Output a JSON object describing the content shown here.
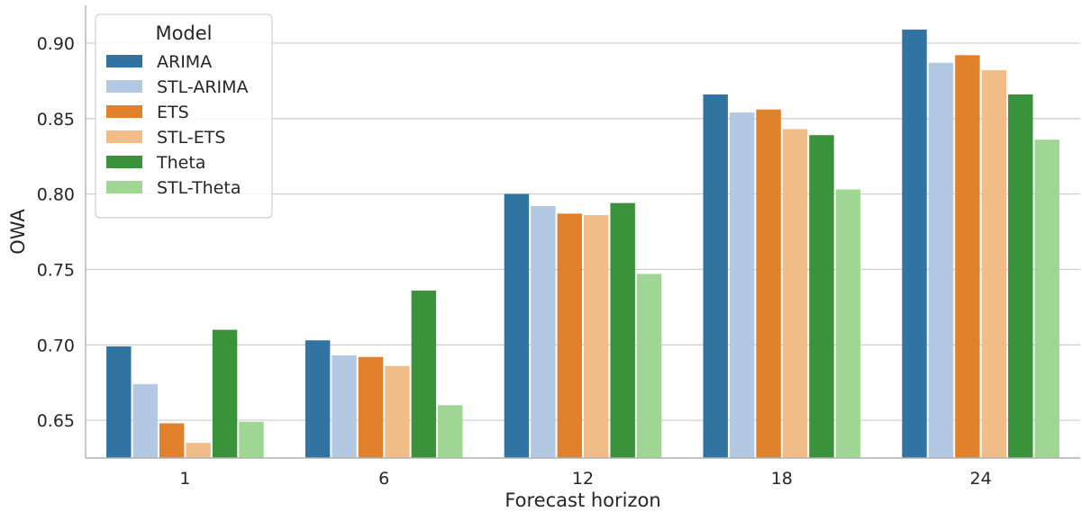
{
  "chart_data": {
    "type": "bar",
    "xlabel": "Forecast horizon",
    "ylabel": "OWA",
    "categories": [
      "1",
      "6",
      "12",
      "18",
      "24"
    ],
    "ylim": [
      0.625,
      0.925
    ],
    "yticks": [
      0.65,
      0.7,
      0.75,
      0.8,
      0.85,
      0.9
    ],
    "ytick_labels": [
      "0.65",
      "0.70",
      "0.75",
      "0.80",
      "0.85",
      "0.90"
    ],
    "grid": "horizontal",
    "legend": {
      "title": "Model",
      "placement": "top-left"
    },
    "series": [
      {
        "name": "ARIMA",
        "color": "#3274a1",
        "values": [
          0.699,
          0.703,
          0.8,
          0.866,
          0.909
        ]
      },
      {
        "name": "STL-ARIMA",
        "color": "#b3c8e3",
        "values": [
          0.674,
          0.693,
          0.792,
          0.854,
          0.887
        ]
      },
      {
        "name": "ETS",
        "color": "#e1812c",
        "values": [
          0.648,
          0.692,
          0.787,
          0.856,
          0.892
        ]
      },
      {
        "name": "STL-ETS",
        "color": "#f0bc88",
        "values": [
          0.635,
          0.686,
          0.786,
          0.843,
          0.882
        ]
      },
      {
        "name": "Theta",
        "color": "#3a923a",
        "values": [
          0.71,
          0.736,
          0.794,
          0.839,
          0.866
        ]
      },
      {
        "name": "STL-Theta",
        "color": "#a0d694",
        "values": [
          0.649,
          0.66,
          0.747,
          0.803,
          0.836
        ]
      }
    ]
  }
}
